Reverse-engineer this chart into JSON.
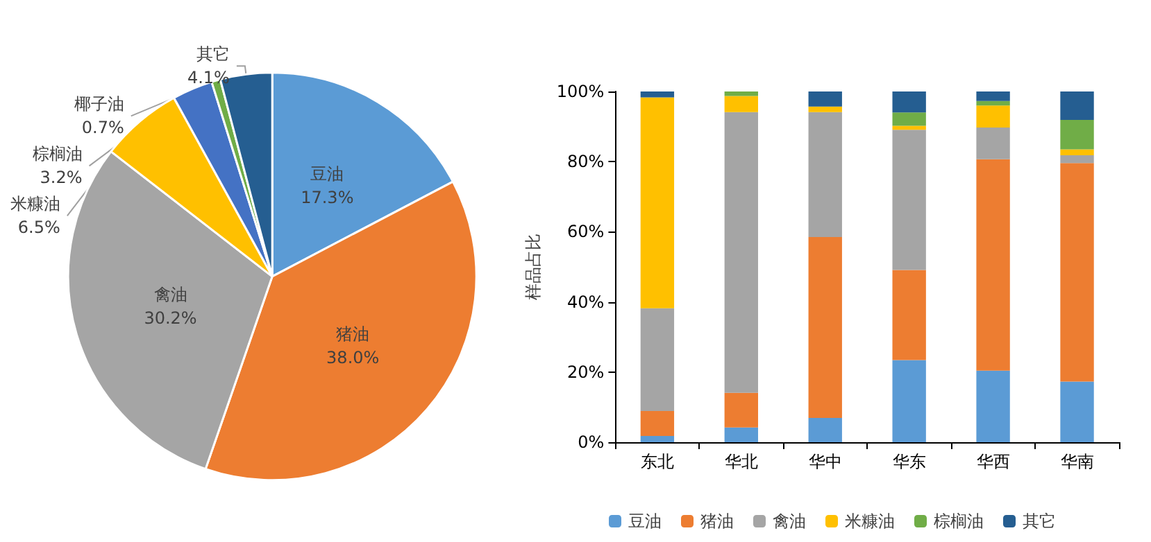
{
  "chart_data": [
    {
      "type": "pie",
      "categories": [
        "豆油",
        "猪油",
        "禽油",
        "米糠油",
        "棕榈油",
        "椰子油",
        "其它"
      ],
      "values": [
        17.3,
        38.0,
        30.2,
        6.5,
        3.2,
        0.7,
        4.1
      ],
      "value_labels": [
        "17.3%",
        "38.0%",
        "30.2%",
        "6.5%",
        "3.2%",
        "0.7%",
        "4.1%"
      ],
      "colors": [
        "#5b9bd5",
        "#ed7d31",
        "#a5a5a5",
        "#ffc000",
        "#4472c4",
        "#70ad47",
        "#255e91"
      ],
      "legend": false
    },
    {
      "type": "bar",
      "stacked": true,
      "ylabel": "样品占比",
      "categories": [
        "东北",
        "华北",
        "华中",
        "华东",
        "华西",
        "华南"
      ],
      "ylim": [
        0,
        100
      ],
      "yticks": [
        {
          "value": 0,
          "label": "0%"
        },
        {
          "value": 20,
          "label": "20%"
        },
        {
          "value": 40,
          "label": "40%"
        },
        {
          "value": 60,
          "label": "60%"
        },
        {
          "value": 80,
          "label": "80%"
        },
        {
          "value": 100,
          "label": "100%"
        }
      ],
      "grid": false,
      "legend": "bottom",
      "series": [
        {
          "name": "豆油",
          "color": "#5b9bd5",
          "values": [
            1.8,
            4.2,
            6.9,
            23.4,
            20.4,
            17.3
          ]
        },
        {
          "name": "猪油",
          "color": "#ed7d31",
          "values": [
            7.1,
            9.9,
            51.6,
            25.7,
            60.3,
            62.3
          ]
        },
        {
          "name": "禽油",
          "color": "#a5a5a5",
          "values": [
            29.3,
            80.0,
            35.6,
            40.0,
            9.0,
            2.2
          ]
        },
        {
          "name": "米糠油",
          "color": "#ffc000",
          "values": [
            60.1,
            4.6,
            1.6,
            1.1,
            6.3,
            1.7
          ]
        },
        {
          "name": "棕榈油",
          "color": "#70ad47",
          "values": [
            0,
            1.3,
            0,
            3.8,
            1.3,
            8.4
          ]
        },
        {
          "name": "其它",
          "color": "#255e91",
          "values": [
            1.7,
            0,
            4.3,
            6.0,
            2.7,
            8.1
          ]
        }
      ]
    }
  ]
}
